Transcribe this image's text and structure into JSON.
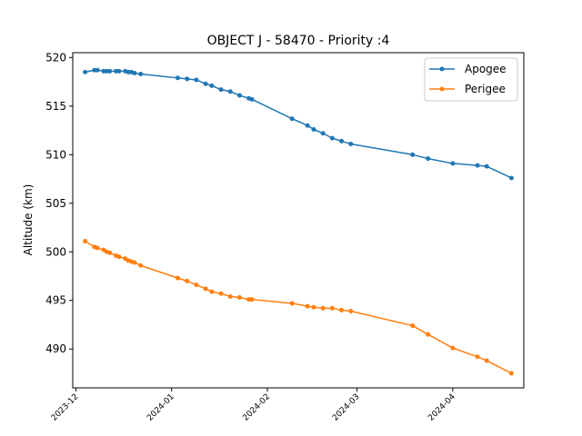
{
  "chart_data": {
    "type": "line",
    "title": "OBJECT J - 58470 - Priority :4",
    "xlabel": "",
    "ylabel": "Altitude (km)",
    "xlim": [
      "2023-11-30",
      "2024-04-24"
    ],
    "ylim": [
      486,
      520.5
    ],
    "yticks": [
      490,
      495,
      500,
      505,
      510,
      515,
      520
    ],
    "xticks": [
      "2023-12",
      "2024-01",
      "2024-02",
      "2024-03",
      "2024-04"
    ],
    "xtick_dates": [
      "2023-12-01",
      "2024-01-01",
      "2024-02-01",
      "2024-03-01",
      "2024-04-01"
    ],
    "grid": false,
    "legend_position": "top-right",
    "colors": {
      "Apogee": "#1f77b4",
      "Perigee": "#ff7f0e"
    },
    "series": [
      {
        "name": "Apogee",
        "x": [
          "2023-12-04",
          "2023-12-07",
          "2023-12-08",
          "2023-12-10",
          "2023-12-11",
          "2023-12-12",
          "2023-12-14",
          "2023-12-15",
          "2023-12-17",
          "2023-12-18",
          "2023-12-19",
          "2023-12-20",
          "2023-12-22",
          "2024-01-03",
          "2024-01-06",
          "2024-01-09",
          "2024-01-12",
          "2024-01-14",
          "2024-01-17",
          "2024-01-20",
          "2024-01-23",
          "2024-01-26",
          "2024-01-27",
          "2024-02-09",
          "2024-02-14",
          "2024-02-16",
          "2024-02-19",
          "2024-02-22",
          "2024-02-25",
          "2024-02-28",
          "2024-03-19",
          "2024-03-24",
          "2024-04-01",
          "2024-04-09",
          "2024-04-12",
          "2024-04-20"
        ],
        "y": [
          518.5,
          518.7,
          518.7,
          518.6,
          518.6,
          518.6,
          518.6,
          518.6,
          518.6,
          518.5,
          518.5,
          518.4,
          518.3,
          517.9,
          517.8,
          517.7,
          517.3,
          517.1,
          516.7,
          516.5,
          516.1,
          515.8,
          515.7,
          513.7,
          513.0,
          512.6,
          512.2,
          511.7,
          511.4,
          511.1,
          510.0,
          509.6,
          509.1,
          508.9,
          508.8,
          507.6
        ]
      },
      {
        "name": "Perigee",
        "x": [
          "2023-12-04",
          "2023-12-07",
          "2023-12-08",
          "2023-12-10",
          "2023-12-11",
          "2023-12-12",
          "2023-12-14",
          "2023-12-15",
          "2023-12-17",
          "2023-12-18",
          "2023-12-19",
          "2023-12-20",
          "2023-12-22",
          "2024-01-03",
          "2024-01-06",
          "2024-01-09",
          "2024-01-12",
          "2024-01-14",
          "2024-01-17",
          "2024-01-20",
          "2024-01-23",
          "2024-01-26",
          "2024-01-27",
          "2024-02-09",
          "2024-02-14",
          "2024-02-16",
          "2024-02-19",
          "2024-02-22",
          "2024-02-25",
          "2024-02-28",
          "2024-03-19",
          "2024-03-24",
          "2024-04-01",
          "2024-04-09",
          "2024-04-12",
          "2024-04-20"
        ],
        "y": [
          501.1,
          500.5,
          500.4,
          500.2,
          500.0,
          499.9,
          499.6,
          499.5,
          499.3,
          499.1,
          499.0,
          498.9,
          498.6,
          497.3,
          497.0,
          496.6,
          496.2,
          495.9,
          495.7,
          495.4,
          495.3,
          495.1,
          495.1,
          494.7,
          494.4,
          494.3,
          494.2,
          494.2,
          494.0,
          493.9,
          492.4,
          491.5,
          490.1,
          489.2,
          488.8,
          487.5
        ]
      }
    ]
  }
}
